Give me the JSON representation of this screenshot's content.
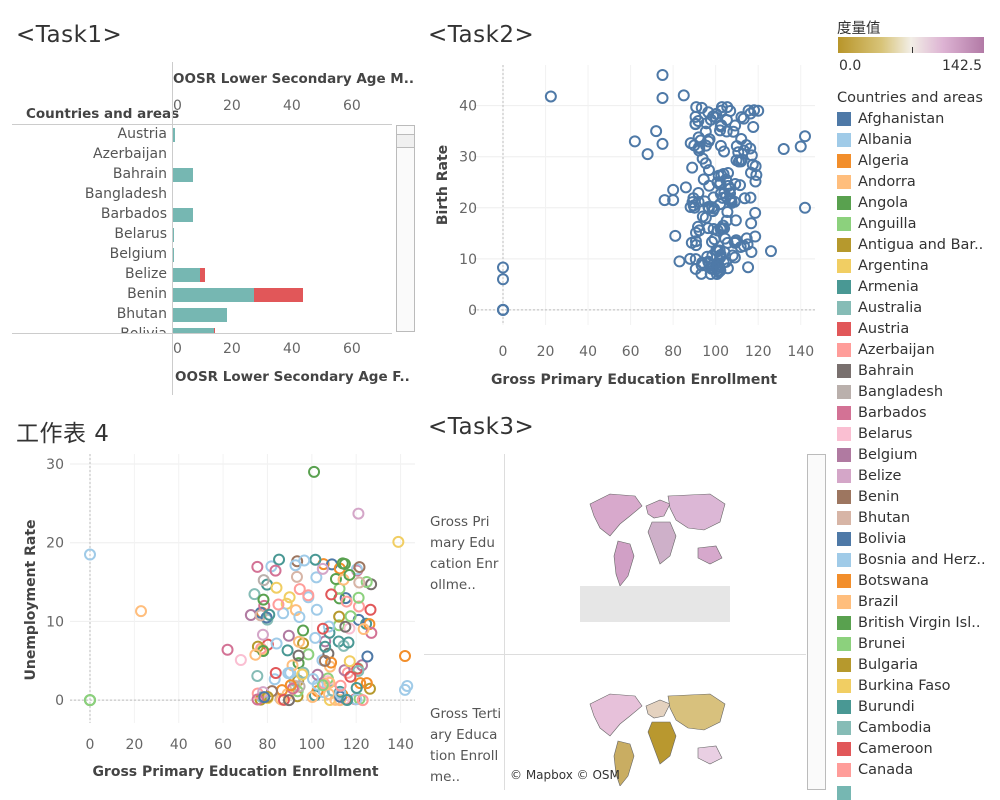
{
  "task1": {
    "title": "<Task1>",
    "header_countries": "Countries and areas",
    "top_axis_title": "OOSR Lower Secondary Age M..",
    "bottom_axis_title": "OOSR Lower Secondary Age F..",
    "axis_ticks": [
      "0",
      "20",
      "40",
      "60"
    ],
    "rows": [
      {
        "country": "Austria",
        "a": 0.8,
        "b": 0
      },
      {
        "country": "Azerbaijan",
        "a": 0,
        "b": 0
      },
      {
        "country": "Bahrain",
        "a": 7.5,
        "b": 0
      },
      {
        "country": "Bangladesh",
        "a": 0,
        "b": 0
      },
      {
        "country": "Barbados",
        "a": 7.5,
        "b": 0
      },
      {
        "country": "Belarus",
        "a": 0.5,
        "b": 0
      },
      {
        "country": "Belgium",
        "a": 0.5,
        "b": 0
      },
      {
        "country": "Belize",
        "a": 10,
        "b": 2
      },
      {
        "country": "Benin",
        "a": 30,
        "b": 18
      },
      {
        "country": "Bhutan",
        "a": 20,
        "b": 0
      },
      {
        "country": "Bolivia",
        "a": 15,
        "b": 0.5
      }
    ],
    "bar_colors": {
      "a": "#76b7b2",
      "b": "#e15759"
    }
  },
  "task2": {
    "title": "<Task2>",
    "xlabel": "Gross Primary Education Enrollment",
    "ylabel": "Birth Rate",
    "x_ticks": [
      "0",
      "20",
      "40",
      "60",
      "80",
      "100",
      "120",
      "140"
    ],
    "y_ticks": [
      "0",
      "10",
      "20",
      "30",
      "40"
    ],
    "mark_color": "#4e79a7"
  },
  "sheet4": {
    "title": "工作表 4",
    "xlabel": "Gross Primary Education Enrollment",
    "ylabel": "Unemployment Rate",
    "x_ticks": [
      "0",
      "20",
      "40",
      "60",
      "80",
      "100",
      "120",
      "140"
    ],
    "y_ticks": [
      "0",
      "10",
      "20",
      "30"
    ]
  },
  "task3": {
    "title": "<Task3>",
    "row1_label": "Gross Primary Education Enrollme..",
    "row2_label": "Gross Tertiary Education Enrollme..",
    "attribution": "© Mapbox © OSM"
  },
  "legend": {
    "measure_title": "度量值",
    "min": "0.0",
    "max": "142.5",
    "countries_title": "Countries and areas",
    "items": [
      {
        "name": "Afghanistan",
        "color": "#4e79a7"
      },
      {
        "name": "Albania",
        "color": "#a0cbe8"
      },
      {
        "name": "Algeria",
        "color": "#f28e2b"
      },
      {
        "name": "Andorra",
        "color": "#ffbe7d"
      },
      {
        "name": "Angola",
        "color": "#59a14f"
      },
      {
        "name": "Anguilla",
        "color": "#8cd17d"
      },
      {
        "name": "Antigua and Bar..",
        "color": "#b6992d"
      },
      {
        "name": "Argentina",
        "color": "#f1ce63"
      },
      {
        "name": "Armenia",
        "color": "#499894"
      },
      {
        "name": "Australia",
        "color": "#86bcb6"
      },
      {
        "name": "Austria",
        "color": "#e15759"
      },
      {
        "name": "Azerbaijan",
        "color": "#ff9d9a"
      },
      {
        "name": "Bahrain",
        "color": "#79706e"
      },
      {
        "name": "Bangladesh",
        "color": "#bab0ac"
      },
      {
        "name": "Barbados",
        "color": "#d37295"
      },
      {
        "name": "Belarus",
        "color": "#fabfd2"
      },
      {
        "name": "Belgium",
        "color": "#b07aa1"
      },
      {
        "name": "Belize",
        "color": "#d4a6c8"
      },
      {
        "name": "Benin",
        "color": "#9d7660"
      },
      {
        "name": "Bhutan",
        "color": "#d7b5a6"
      },
      {
        "name": "Bolivia",
        "color": "#4e79a7"
      },
      {
        "name": "Bosnia and Herz..",
        "color": "#a0cbe8"
      },
      {
        "name": "Botswana",
        "color": "#f28e2b"
      },
      {
        "name": "Brazil",
        "color": "#ffbe7d"
      },
      {
        "name": "British Virgin Isl..",
        "color": "#59a14f"
      },
      {
        "name": "Brunei",
        "color": "#8cd17d"
      },
      {
        "name": "Bulgaria",
        "color": "#b6992d"
      },
      {
        "name": "Burkina Faso",
        "color": "#f1ce63"
      },
      {
        "name": "Burundi",
        "color": "#499894"
      },
      {
        "name": "Cambodia",
        "color": "#86bcb6"
      },
      {
        "name": "Cameroon",
        "color": "#e15759"
      },
      {
        "name": "Canada",
        "color": "#ff9d9a"
      }
    ]
  }
}
